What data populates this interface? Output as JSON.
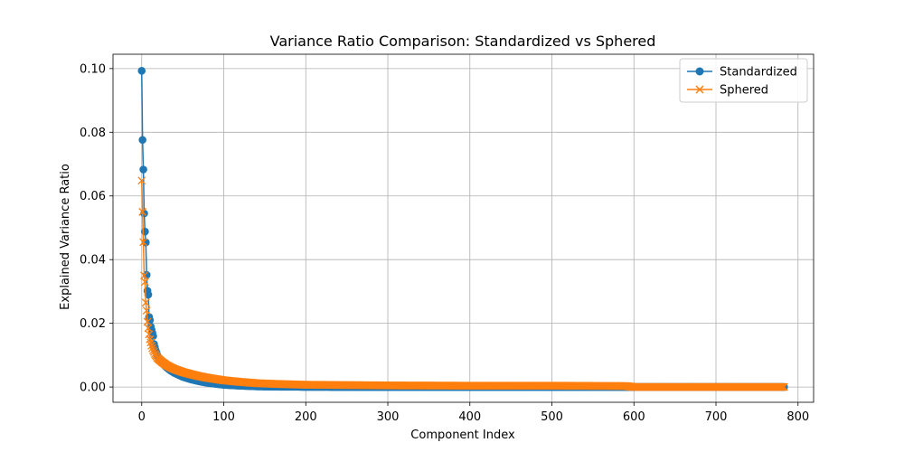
{
  "chart_data": {
    "type": "line",
    "title": "Variance Ratio Comparison: Standardized vs Sphered",
    "xlabel": "Component Index",
    "ylabel": "Explained Variance Ratio",
    "xlim": [
      -35,
      819
    ],
    "ylim": [
      -0.0048,
      0.1045
    ],
    "xticks": [
      0,
      100,
      200,
      300,
      400,
      500,
      600,
      700,
      800
    ],
    "xtick_labels": [
      "0",
      "100",
      "200",
      "300",
      "400",
      "500",
      "600",
      "700",
      "800"
    ],
    "yticks": [
      0.0,
      0.02,
      0.04,
      0.06,
      0.08,
      0.1
    ],
    "ytick_labels": [
      "0.00",
      "0.02",
      "0.04",
      "0.06",
      "0.08",
      "0.10"
    ],
    "grid": true,
    "legend_position": "upper right",
    "n_points": 784,
    "series": [
      {
        "name": "Standardized",
        "color": "#1f77b4",
        "marker": "circle",
        "x": [
          0,
          1,
          2,
          3,
          4,
          5,
          6,
          7,
          8,
          9,
          10,
          11,
          12,
          13,
          14,
          15,
          16,
          17,
          18,
          19,
          20,
          25,
          30,
          35,
          40,
          50,
          60,
          70,
          80,
          90,
          100,
          120,
          140,
          160,
          200,
          250,
          300,
          400,
          500,
          600,
          700,
          783
        ],
        "values": [
          0.0993,
          0.0776,
          0.0683,
          0.0545,
          0.0488,
          0.0454,
          0.0352,
          0.0302,
          0.029,
          0.022,
          0.021,
          0.019,
          0.018,
          0.017,
          0.016,
          0.0135,
          0.0125,
          0.0115,
          0.0108,
          0.01,
          0.0095,
          0.0075,
          0.0062,
          0.0052,
          0.0044,
          0.0032,
          0.0024,
          0.0018,
          0.0013,
          0.001,
          0.0007,
          0.0004,
          0.0002,
          0.0001,
          5e-05,
          0.0,
          0.0,
          0.0,
          0.0,
          0.0,
          0.0,
          0.0
        ]
      },
      {
        "name": "Sphered",
        "color": "#ff7f0e",
        "marker": "x",
        "x": [
          0,
          1,
          2,
          3,
          4,
          5,
          6,
          7,
          8,
          9,
          10,
          11,
          12,
          13,
          14,
          15,
          16,
          17,
          18,
          19,
          20,
          25,
          30,
          35,
          40,
          50,
          60,
          70,
          80,
          90,
          100,
          120,
          140,
          160,
          200,
          250,
          300,
          400,
          500,
          590,
          600,
          700,
          783
        ],
        "values": [
          0.0648,
          0.055,
          0.0455,
          0.035,
          0.033,
          0.0265,
          0.024,
          0.0205,
          0.0185,
          0.0165,
          0.015,
          0.014,
          0.013,
          0.0122,
          0.0115,
          0.011,
          0.0104,
          0.01,
          0.0096,
          0.0092,
          0.0089,
          0.0078,
          0.0069,
          0.0062,
          0.0056,
          0.0047,
          0.004,
          0.0034,
          0.0029,
          0.0025,
          0.0021,
          0.0016,
          0.0012,
          0.001,
          0.0007,
          0.0006,
          0.0005,
          0.0004,
          0.0004,
          0.0003,
          0.0,
          0.0,
          0.0
        ]
      }
    ]
  }
}
